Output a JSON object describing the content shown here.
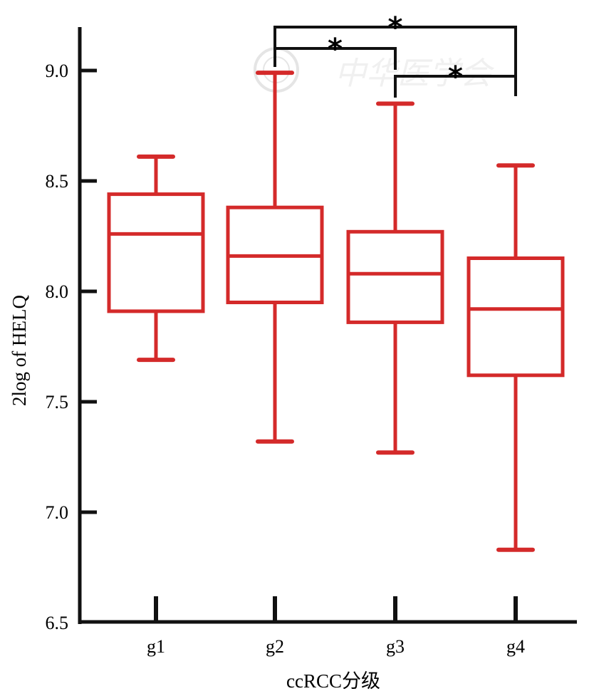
{
  "chart_data": {
    "type": "box",
    "title": "",
    "xlabel": "ccRCC分级",
    "ylabel": "2log of HELQ",
    "ylim": [
      6.5,
      9.25
    ],
    "yticks": [
      "6.5",
      "7.0",
      "7.5",
      "8.0",
      "8.5",
      "9.0"
    ],
    "categories": [
      "g1",
      "g2",
      "g3",
      "g4"
    ],
    "boxes": [
      {
        "category": "g1",
        "min": 7.69,
        "q1": 7.91,
        "median": 8.26,
        "q3": 8.44,
        "max": 8.61
      },
      {
        "category": "g2",
        "min": 7.32,
        "q1": 7.95,
        "median": 8.16,
        "q3": 8.38,
        "max": 8.99
      },
      {
        "category": "g3",
        "min": 7.27,
        "q1": 7.86,
        "median": 8.08,
        "q3": 8.27,
        "max": 8.85
      },
      {
        "category": "g4",
        "min": 6.83,
        "q1": 7.62,
        "median": 7.92,
        "q3": 8.15,
        "max": 8.57
      }
    ],
    "significance": [
      {
        "from": "g2",
        "to": "g3",
        "label": "*"
      },
      {
        "from": "g2",
        "to": "g4",
        "label": "*"
      },
      {
        "from": "g3",
        "to": "g4",
        "label": "*"
      }
    ],
    "colors": {
      "box": "#d42a2a",
      "axis": "#111111",
      "bracket": "#111111"
    },
    "grid": false,
    "legend": "none"
  },
  "watermark": {
    "text": "中华医学会"
  }
}
